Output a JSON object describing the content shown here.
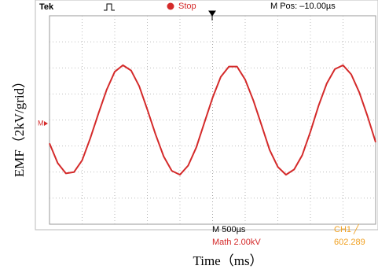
{
  "chart_data": {
    "type": "line",
    "header": {
      "brand": "Tek",
      "status": "Stop",
      "position": "M Pos: –10.00µs"
    },
    "footer": {
      "timebase": "M 500µs",
      "math_scale": "Math 2.00kV",
      "trigger": "CH1 ╱",
      "readout": "602.289"
    },
    "marker": "M",
    "y_label": "EMF（2kV/grid）",
    "x_label": "Time（ms）",
    "color": "#d42a2a",
    "xlim": [
      0,
      5
    ],
    "ylim": [
      -8,
      8
    ],
    "grid": true,
    "x": [
      0,
      0.125,
      0.25,
      0.375,
      0.5,
      0.625,
      0.75,
      0.875,
      1.0,
      1.125,
      1.25,
      1.375,
      1.5,
      1.625,
      1.75,
      1.875,
      2.0,
      2.125,
      2.25,
      2.375,
      2.5,
      2.625,
      2.75,
      2.875,
      3.0,
      3.125,
      3.25,
      3.375,
      3.5,
      3.625,
      3.75,
      3.875,
      4.0,
      4.125,
      4.25,
      4.375,
      4.5,
      4.625,
      4.75,
      4.875,
      5.0
    ],
    "values": [
      -1.8,
      -3.3,
      -4.1,
      -4.0,
      -3.1,
      -1.4,
      0.5,
      2.3,
      3.7,
      4.2,
      3.8,
      2.6,
      0.8,
      -1.1,
      -2.8,
      -3.9,
      -4.2,
      -3.5,
      -2.1,
      -0.2,
      1.7,
      3.3,
      4.1,
      4.1,
      3.1,
      1.5,
      -0.4,
      -2.3,
      -3.6,
      -4.2,
      -3.8,
      -2.7,
      -0.9,
      1.1,
      2.8,
      3.9,
      4.2,
      3.5,
      2.1,
      0.3,
      -1.7
    ]
  }
}
